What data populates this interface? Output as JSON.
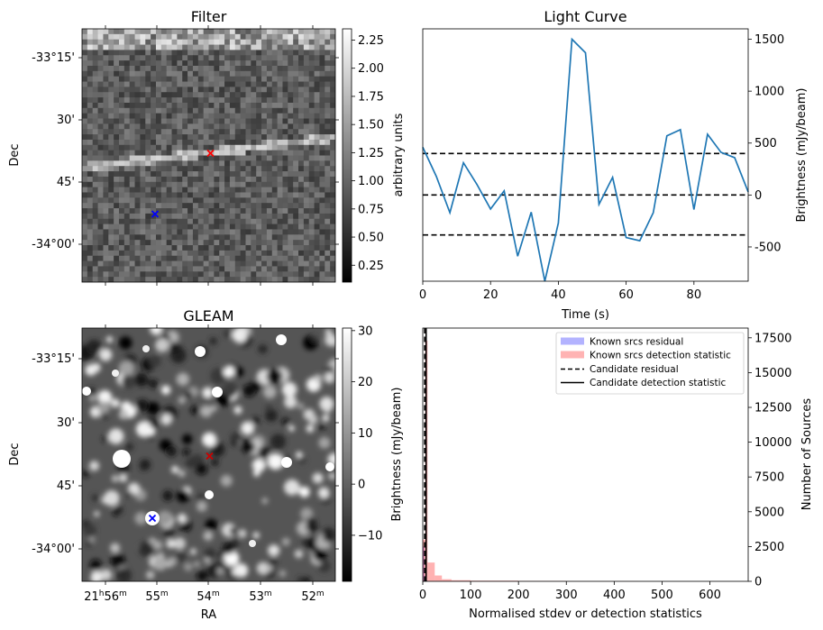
{
  "figure": {
    "panel_count": 4
  },
  "chart_data": [
    {
      "type": "heatmap",
      "title": "Filter",
      "xlabel": "",
      "ylabel": "Dec",
      "y_ticks": [
        "-33°15'",
        "30'",
        "45'",
        "-34°00'"
      ],
      "colorbar": {
        "label": "arbitrary units",
        "range": [
          0.1,
          2.35
        ],
        "ticks": [
          "0.25",
          "0.50",
          "0.75",
          "1.00",
          "1.25",
          "1.50",
          "1.75",
          "2.00",
          "2.25"
        ],
        "tick_values": [
          0.25,
          0.5,
          0.75,
          1.0,
          1.25,
          1.5,
          1.75,
          2.0,
          2.25
        ],
        "cmap": "gray"
      },
      "markers": [
        {
          "symbol": "x",
          "color": "#ff0000",
          "label": "candidate"
        },
        {
          "symbol": "x",
          "color": "#0000ff",
          "label": "known source"
        }
      ]
    },
    {
      "type": "line",
      "title": "Light Curve",
      "xlabel": "Time (s)",
      "ylabel": "Brightness (mJy/beam)",
      "x": [
        0,
        4,
        8,
        12,
        16,
        20,
        24,
        28,
        32,
        36,
        40,
        44,
        48,
        52,
        56,
        60,
        64,
        68,
        72,
        76,
        80,
        84,
        88,
        92,
        96
      ],
      "y": [
        460,
        180,
        -170,
        310,
        100,
        -135,
        40,
        -590,
        -165,
        -830,
        -270,
        1500,
        1370,
        -90,
        170,
        -410,
        -440,
        -170,
        570,
        630,
        -140,
        585,
        410,
        360,
        30
      ],
      "xlim": [
        0,
        96
      ],
      "ylim": [
        -830,
        1600
      ],
      "x_ticks": [
        "0",
        "20",
        "40",
        "60",
        "80"
      ],
      "x_tick_values": [
        0,
        20,
        40,
        60,
        80
      ],
      "y_ticks": [
        "-500",
        "0",
        "500",
        "1000",
        "1500"
      ],
      "y_tick_values": [
        -500,
        0,
        500,
        1000,
        1500
      ],
      "hlines": [
        400,
        0,
        -385
      ],
      "line_color": "#1f77b4"
    },
    {
      "type": "heatmap",
      "title": "GLEAM",
      "xlabel": "RA",
      "ylabel": "Dec",
      "y_ticks": [
        "-33°15'",
        "30'",
        "45'",
        "-34°00'"
      ],
      "x_ticks": [
        {
          "main": "21",
          "sup1": "h",
          "main2": "56",
          "sup2": "m"
        },
        {
          "main": "55",
          "sup": "m"
        },
        {
          "main": "54",
          "sup": "m"
        },
        {
          "main": "53",
          "sup": "m"
        },
        {
          "main": "52",
          "sup": "m"
        }
      ],
      "colorbar": {
        "label": "Brightness (mJy/beam)",
        "range": [
          -19,
          30.5
        ],
        "ticks": [
          "−10",
          "0",
          "10",
          "20",
          "30"
        ],
        "tick_values": [
          -10,
          0,
          10,
          20,
          30
        ],
        "cmap": "gray"
      },
      "markers": [
        {
          "symbol": "x",
          "color": "#cc0000",
          "label": "candidate"
        },
        {
          "symbol": "x",
          "color": "#0000ff",
          "label": "known source"
        }
      ]
    },
    {
      "type": "bar",
      "xlabel": "Normalised stdev or detection statistics",
      "ylabel": "Number of Sources",
      "xlim": [
        0,
        680
      ],
      "ylim": [
        0,
        18200
      ],
      "x_ticks": [
        "0",
        "100",
        "200",
        "300",
        "400",
        "500",
        "600"
      ],
      "x_tick_values": [
        0,
        100,
        200,
        300,
        400,
        500,
        600
      ],
      "y_ticks": [
        "0",
        "2500",
        "5000",
        "7500",
        "10000",
        "12500",
        "15000",
        "17500"
      ],
      "y_tick_values": [
        0,
        2500,
        5000,
        7500,
        10000,
        12500,
        15000,
        17500
      ],
      "series": [
        {
          "name": "Known srcs residual",
          "color": "#0000ff",
          "bins": [
            [
              0,
              3,
              2500
            ],
            [
              3,
              5,
              400
            ],
            [
              5,
              10,
              50
            ]
          ]
        },
        {
          "name": "Known srcs detection statistic",
          "color": "#ff0000",
          "bins": [
            [
              0,
              5,
              3000
            ],
            [
              5,
              10,
              17300
            ],
            [
              10,
              25,
              1350
            ],
            [
              25,
              40,
              420
            ],
            [
              40,
              60,
              150
            ],
            [
              60,
              100,
              80
            ],
            [
              100,
              200,
              50
            ],
            [
              200,
              300,
              30
            ],
            [
              300,
              450,
              15
            ],
            [
              450,
              680,
              8
            ]
          ]
        }
      ],
      "vlines": [
        {
          "name": "Candidate residual",
          "x": 4,
          "style": "dashed"
        },
        {
          "name": "Candidate detection statistic",
          "x": 7,
          "style": "solid"
        }
      ],
      "legend": [
        {
          "label": "Known srcs residual",
          "color": "#b3b3ff",
          "kind": "patch"
        },
        {
          "label": "Known srcs detection statistic",
          "color": "#ffb3b3",
          "kind": "patch"
        },
        {
          "label": "Candidate residual",
          "kind": "dashed"
        },
        {
          "label": "Candidate detection statistic",
          "kind": "solid"
        }
      ],
      "legend_position": "top-right"
    }
  ]
}
